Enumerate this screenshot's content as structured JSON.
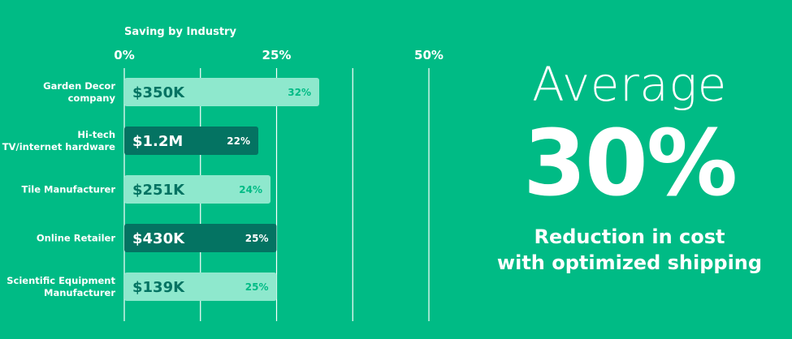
{
  "chart_data": {
    "type": "bar",
    "orientation": "horizontal",
    "title": "Saving by Industry",
    "x_ticks": [
      "0%",
      "25%",
      "50%"
    ],
    "xlim": [
      0,
      50
    ],
    "grid": true,
    "categories": [
      [
        "Garden Decor",
        "company"
      ],
      [
        "Hi-tech",
        "TV/internet hardware"
      ],
      [
        "Tile Manufacturer"
      ],
      [
        "Online Retailer"
      ],
      [
        "Scientific Equipment",
        "Manufacturer"
      ]
    ],
    "values": [
      32,
      22,
      24,
      25,
      25
    ],
    "value_labels": [
      "32%",
      "22%",
      "24%",
      "25%",
      "25%"
    ],
    "amount_labels": [
      "$350K",
      "$1.2M",
      "$251K",
      "$430K",
      "$139K"
    ],
    "bar_styles": [
      "light",
      "dark",
      "light",
      "dark",
      "light"
    ],
    "colors": {
      "light_bar": "#8ee8cd",
      "dark_bar": "#047362",
      "amount_on_light": "#047362",
      "pct_on_light": "#00bb85",
      "text_on_dark": "#ffffff"
    }
  },
  "summary": {
    "label": "Average",
    "value": "30%",
    "line1": "Reduction in cost",
    "line2": "with optimized shipping"
  }
}
